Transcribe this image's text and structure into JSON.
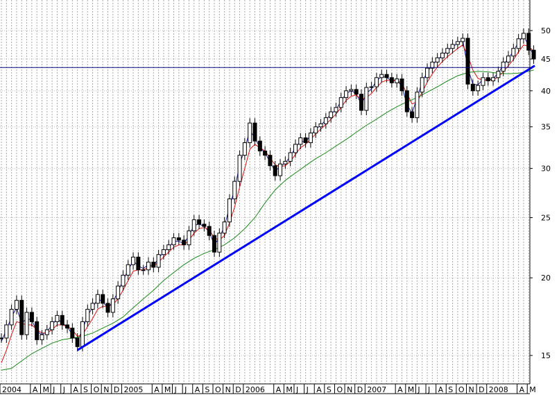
{
  "chart_data": {
    "type": "line",
    "title": "",
    "xlabel": "",
    "ylabel": "",
    "y_scale": "log",
    "ylim": [
      13.5,
      56
    ],
    "grid": true,
    "y_axis_side": "right",
    "y_ticks": [
      "15",
      "20",
      "25",
      "30",
      "35",
      "40",
      "45",
      "50"
    ],
    "x_ticks": [
      {
        "label": "2004",
        "pos": 0.0
      },
      {
        "label": "A",
        "pos": 3.0
      },
      {
        "label": "M",
        "pos": 4.0
      },
      {
        "label": "J",
        "pos": 5.0
      },
      {
        "label": "J",
        "pos": 6.0
      },
      {
        "label": "A",
        "pos": 7.0
      },
      {
        "label": "S",
        "pos": 8.0
      },
      {
        "label": "O",
        "pos": 9.0
      },
      {
        "label": "N",
        "pos": 10.0
      },
      {
        "label": "D",
        "pos": 11.0
      },
      {
        "label": "2005",
        "pos": 12.0
      },
      {
        "label": "A",
        "pos": 15.0
      },
      {
        "label": "M",
        "pos": 16.0
      },
      {
        "label": "J",
        "pos": 17.0
      },
      {
        "label": "J",
        "pos": 18.0
      },
      {
        "label": "A",
        "pos": 19.0
      },
      {
        "label": "S",
        "pos": 20.0
      },
      {
        "label": "O",
        "pos": 21.0
      },
      {
        "label": "N",
        "pos": 22.0
      },
      {
        "label": "D",
        "pos": 23.0
      },
      {
        "label": "2006",
        "pos": 24.0
      },
      {
        "label": "A",
        "pos": 27.0
      },
      {
        "label": "M",
        "pos": 28.0
      },
      {
        "label": "J",
        "pos": 29.0
      },
      {
        "label": "J",
        "pos": 30.0
      },
      {
        "label": "A",
        "pos": 31.0
      },
      {
        "label": "S",
        "pos": 32.0
      },
      {
        "label": "O",
        "pos": 33.0
      },
      {
        "label": "N",
        "pos": 34.0
      },
      {
        "label": "D",
        "pos": 35.0
      },
      {
        "label": "2007",
        "pos": 36.0
      },
      {
        "label": "A",
        "pos": 39.0
      },
      {
        "label": "M",
        "pos": 40.0
      },
      {
        "label": "J",
        "pos": 41.0
      },
      {
        "label": "J",
        "pos": 42.0
      },
      {
        "label": "A",
        "pos": 43.0
      },
      {
        "label": "S",
        "pos": 44.0
      },
      {
        "label": "O",
        "pos": 45.0
      },
      {
        "label": "N",
        "pos": 46.0
      },
      {
        "label": "D",
        "pos": 47.0
      },
      {
        "label": "2008",
        "pos": 48.0
      },
      {
        "label": "A",
        "pos": 51.0
      },
      {
        "label": "M",
        "pos": 52.0
      }
    ],
    "x_range": [
      0,
      53
    ],
    "series": [
      {
        "kind": "price-bars",
        "color": "#000000",
        "x": [
          0.0,
          0.5,
          1.0,
          1.5,
          2.0,
          2.5,
          3.0,
          3.5,
          4.0,
          4.5,
          5.0,
          5.5,
          6.0,
          6.5,
          7.0,
          7.5,
          8.0,
          8.5,
          9.0,
          9.5,
          10.0,
          10.5,
          11.0,
          11.5,
          12.0,
          12.5,
          13.0,
          13.5,
          14.0,
          14.5,
          15.0,
          15.5,
          16.0,
          16.5,
          17.0,
          17.5,
          18.0,
          18.5,
          19.0,
          19.5,
          20.0,
          20.5,
          21.0,
          21.5,
          22.0,
          22.5,
          23.0,
          23.5,
          24.0,
          24.5,
          25.0,
          25.5,
          26.0,
          26.5,
          27.0,
          27.5,
          28.0,
          28.5,
          29.0,
          29.5,
          30.0,
          30.5,
          31.0,
          31.5,
          32.0,
          32.5,
          33.0,
          33.5,
          34.0,
          34.5,
          35.0,
          35.5,
          36.0,
          36.5,
          37.0,
          37.5,
          38.0,
          38.5,
          39.0,
          39.5,
          40.0,
          40.5,
          41.0,
          41.5,
          42.0,
          42.5,
          43.0,
          43.5,
          44.0,
          44.5,
          45.0,
          45.5,
          46.0,
          46.5,
          47.0,
          47.5,
          48.0,
          48.5,
          49.0,
          49.5,
          50.0,
          50.5,
          51.0,
          51.5,
          52.0,
          52.5
        ],
        "values": [
          16.0,
          16.8,
          17.8,
          18.4,
          16.2,
          17.6,
          17.0,
          15.9,
          16.2,
          16.5,
          17.0,
          17.4,
          16.8,
          16.6,
          16.0,
          15.5,
          17.0,
          17.8,
          18.2,
          18.8,
          18.2,
          17.6,
          18.5,
          19.4,
          20.2,
          21.0,
          21.6,
          20.6,
          20.6,
          21.2,
          20.8,
          21.8,
          22.2,
          22.6,
          23.2,
          23.0,
          22.6,
          23.8,
          24.8,
          24.4,
          24.2,
          23.4,
          22.0,
          23.6,
          24.6,
          26.8,
          28.6,
          31.5,
          33.0,
          35.5,
          33.2,
          32.0,
          31.5,
          30.3,
          29.2,
          30.5,
          30.8,
          31.8,
          32.8,
          33.6,
          33.0,
          34.2,
          35.0,
          35.4,
          36.2,
          37.0,
          37.6,
          39.0,
          40.0,
          40.2,
          39.5,
          37.2,
          40.5,
          40.6,
          42.0,
          42.5,
          42.0,
          41.2,
          41.8,
          40.0,
          37.0,
          36.2,
          39.8,
          42.0,
          43.5,
          44.5,
          45.2,
          46.0,
          46.8,
          47.5,
          48.0,
          48.6,
          41.0,
          40.0,
          40.8,
          42.0,
          41.5,
          42.0,
          43.0,
          44.5,
          45.5,
          46.8,
          48.5,
          49.5,
          46.5,
          45.0
        ]
      },
      {
        "kind": "moving-average",
        "color": "#1a1aa0",
        "x": [
          0.0,
          0.5,
          1.0,
          1.5,
          2.0,
          2.5,
          3.0,
          3.5,
          4.0,
          4.5,
          5.0,
          5.5,
          6.0,
          6.5,
          7.0,
          7.5,
          8.0,
          8.5,
          9.0,
          9.5,
          10.0,
          10.5,
          11.0,
          11.5,
          12.0,
          12.5,
          13.0,
          13.5,
          14.0,
          14.5,
          15.0,
          15.5,
          16.0,
          16.5,
          17.0,
          17.5,
          18.0,
          18.5,
          19.0,
          19.5,
          20.0,
          20.5,
          21.0,
          21.5,
          22.0,
          22.5,
          23.0,
          23.5,
          24.0,
          24.5,
          25.0,
          25.5,
          26.0,
          26.5,
          27.0,
          27.5,
          28.0,
          28.5,
          29.0,
          29.5,
          30.0,
          30.5,
          31.0,
          31.5,
          32.0,
          32.5,
          33.0,
          33.5,
          34.0,
          34.5,
          35.0,
          35.5,
          36.0,
          36.5,
          37.0,
          37.5,
          38.0,
          38.5,
          39.0,
          39.5,
          40.0,
          40.5,
          41.0,
          41.5,
          42.0,
          42.5,
          43.0,
          43.5,
          44.0,
          44.5,
          45.0,
          45.5,
          46.0,
          46.5,
          47.0,
          47.5,
          48.0,
          48.5,
          49.0,
          49.5,
          50.0,
          50.5,
          51.0,
          51.5,
          52.0,
          52.5
        ],
        "values": [
          15.8,
          16.5,
          17.3,
          17.9,
          16.9,
          17.2,
          17.1,
          16.4,
          16.2,
          16.4,
          16.8,
          17.2,
          16.9,
          16.7,
          16.2,
          15.8,
          16.5,
          17.4,
          17.9,
          18.5,
          18.3,
          17.9,
          18.3,
          19.0,
          19.8,
          20.6,
          21.3,
          20.9,
          20.7,
          21.0,
          20.9,
          21.5,
          22.0,
          22.4,
          22.9,
          22.9,
          22.7,
          23.4,
          24.3,
          24.4,
          24.2,
          23.7,
          22.6,
          23.2,
          24.2,
          26.0,
          27.8,
          30.4,
          32.3,
          34.5,
          33.6,
          32.4,
          31.8,
          30.7,
          29.7,
          30.2,
          30.6,
          31.4,
          32.4,
          33.2,
          33.1,
          33.9,
          34.7,
          35.2,
          35.9,
          36.7,
          37.3,
          38.5,
          39.6,
          40.0,
          39.6,
          38.0,
          39.6,
          40.3,
          41.5,
          42.2,
          42.0,
          41.5,
          41.7,
          40.6,
          38.0,
          36.8,
          39.0,
          41.3,
          42.9,
          44.0,
          44.9,
          45.6,
          46.4,
          47.1,
          47.7,
          48.3,
          43.5,
          41.0,
          40.9,
          41.7,
          41.6,
          41.9,
          42.7,
          44.0,
          45.1,
          46.3,
          47.9,
          49.0,
          47.3,
          45.6
        ]
      },
      {
        "kind": "moving-average",
        "color": "#e01010",
        "x": [
          0.0,
          0.5,
          1.0,
          1.5,
          2.0,
          2.5,
          3.0,
          3.5,
          4.0,
          4.5,
          5.0,
          5.5,
          6.0,
          6.5,
          7.0,
          7.5,
          8.0,
          8.5,
          9.0,
          9.5,
          10.0,
          10.5,
          11.0,
          11.5,
          12.0,
          12.5,
          13.0,
          13.5,
          14.0,
          14.5,
          15.0,
          15.5,
          16.0,
          16.5,
          17.0,
          17.5,
          18.0,
          18.5,
          19.0,
          19.5,
          20.0,
          20.5,
          21.0,
          21.5,
          22.0,
          22.5,
          23.0,
          23.5,
          24.0,
          24.5,
          25.0,
          25.5,
          26.0,
          26.5,
          27.0,
          27.5,
          28.0,
          28.5,
          29.0,
          29.5,
          30.0,
          30.5,
          31.0,
          31.5,
          32.0,
          32.5,
          33.0,
          33.5,
          34.0,
          34.5,
          35.0,
          35.5,
          36.0,
          36.5,
          37.0,
          37.5,
          38.0,
          38.5,
          39.0,
          39.5,
          40.0,
          40.5,
          41.0,
          41.5,
          42.0,
          42.5,
          43.0,
          43.5,
          44.0,
          44.5,
          45.0,
          45.5,
          46.0,
          46.5,
          47.0,
          47.5,
          48.0,
          48.5,
          49.0,
          49.5,
          50.0,
          50.5,
          51.0,
          51.5,
          52.0,
          52.5
        ],
        "values": [
          14.6,
          15.3,
          16.2,
          17.0,
          16.9,
          16.8,
          16.8,
          16.5,
          16.3,
          16.3,
          16.5,
          16.8,
          16.8,
          16.7,
          16.5,
          16.1,
          16.2,
          16.7,
          17.2,
          17.8,
          18.0,
          18.0,
          18.1,
          18.5,
          19.1,
          19.8,
          20.5,
          20.6,
          20.6,
          20.8,
          20.9,
          21.2,
          21.6,
          22.0,
          22.4,
          22.6,
          22.6,
          23.0,
          23.6,
          24.0,
          24.1,
          23.9,
          23.2,
          23.0,
          23.4,
          24.5,
          26.0,
          28.0,
          30.0,
          32.2,
          32.8,
          32.4,
          32.0,
          31.2,
          30.4,
          30.2,
          30.3,
          30.8,
          31.6,
          32.4,
          32.8,
          33.4,
          34.1,
          34.7,
          35.3,
          36.0,
          36.7,
          37.6,
          38.6,
          39.2,
          39.4,
          38.7,
          39.0,
          39.6,
          40.5,
          41.3,
          41.6,
          41.5,
          41.6,
          41.1,
          39.6,
          38.1,
          38.4,
          39.8,
          41.3,
          42.6,
          43.7,
          44.6,
          45.4,
          46.1,
          46.8,
          47.4,
          45.6,
          43.2,
          41.9,
          41.6,
          41.6,
          41.7,
          42.1,
          42.9,
          43.9,
          44.9,
          46.2,
          47.4,
          47.2,
          46.3
        ]
      },
      {
        "kind": "moving-average",
        "color": "#1a8a1a",
        "x": [
          0.0,
          1.0,
          2.0,
          3.0,
          4.0,
          5.0,
          6.0,
          7.0,
          8.0,
          9.0,
          10.0,
          11.0,
          12.0,
          13.0,
          14.0,
          15.0,
          16.0,
          17.0,
          18.0,
          19.0,
          20.0,
          21.0,
          22.0,
          23.0,
          24.0,
          25.0,
          26.0,
          27.0,
          28.0,
          29.0,
          30.0,
          31.0,
          32.0,
          33.0,
          34.0,
          35.0,
          36.0,
          37.0,
          38.0,
          39.0,
          40.0,
          41.0,
          42.0,
          43.0,
          44.0,
          45.0,
          46.0,
          47.0,
          48.0,
          49.0,
          50.0,
          51.0,
          52.0,
          52.5
        ],
        "values": [
          14.2,
          14.3,
          14.7,
          15.1,
          15.4,
          15.7,
          15.9,
          16.0,
          16.1,
          16.3,
          16.6,
          16.9,
          17.3,
          17.9,
          18.5,
          19.1,
          19.8,
          20.4,
          21.0,
          21.5,
          21.9,
          22.2,
          22.6,
          23.2,
          24.0,
          25.0,
          26.4,
          27.7,
          28.7,
          29.5,
          30.3,
          31.1,
          31.8,
          32.6,
          33.4,
          34.3,
          35.2,
          36.0,
          36.9,
          37.7,
          38.4,
          39.0,
          39.8,
          40.6,
          41.5,
          42.3,
          42.8,
          43.0,
          42.9,
          42.7,
          42.6,
          42.7,
          43.0,
          43.2
        ]
      }
    ],
    "trendline": {
      "color": "#0000ff",
      "x": [
        7.5,
        52.6
      ],
      "values": [
        15.3,
        43.9
      ]
    },
    "resistance_line": {
      "color": "#00007a",
      "value": 43.6
    }
  }
}
